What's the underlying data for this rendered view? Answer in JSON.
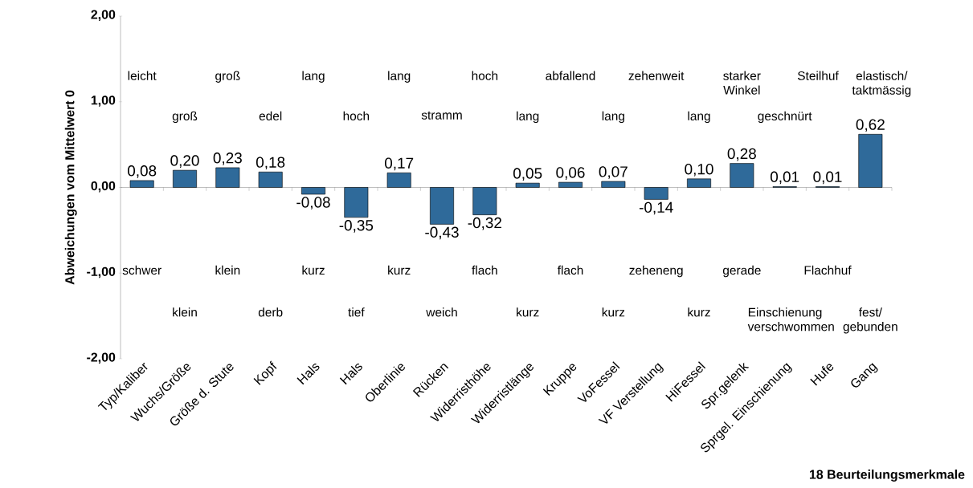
{
  "chart_data": {
    "type": "bar",
    "categories": [
      "Typ/Kaliber",
      "Wuchs/Größe",
      "Größe d. Stute",
      "Kopf",
      "Hals",
      "Hals",
      "Oberlinie",
      "Rücken",
      "Widerristhöhe",
      "Widerristlänge",
      "Kruppe",
      "VoFessel",
      "VF Verstellung",
      "HiFessel",
      "Spr.gelenk",
      "Sprgel. Einschienung",
      "Hufe",
      "Gang"
    ],
    "values": [
      0.08,
      0.2,
      0.23,
      0.18,
      -0.08,
      -0.35,
      0.17,
      -0.43,
      -0.32,
      0.05,
      0.06,
      0.07,
      -0.14,
      0.1,
      0.28,
      0.01,
      0.01,
      0.62
    ],
    "value_labels": [
      "0,08",
      "0,20",
      "0,23",
      "0,18",
      "-0,08",
      "-0,35",
      "0,17",
      "-0,43",
      "-0,32",
      "0,05",
      "0,06",
      "0,07",
      "-0,14",
      "0,10",
      "0,28",
      "0,01",
      "0,01",
      "0,62"
    ],
    "color": "#2f6a9a",
    "ylim": [
      -2,
      2
    ],
    "yticks": [
      {
        "value": -2,
        "label": "-2,00"
      },
      {
        "value": -1,
        "label": "-1,00"
      },
      {
        "value": 0,
        "label": "0,00"
      },
      {
        "value": 1,
        "label": "1,00"
      },
      {
        "value": 2,
        "label": "2,00"
      }
    ],
    "ylabel": "Abweichungen vom Mittelwert 0",
    "xlabel": "18 Beurteilungsmerkmale",
    "annotations": [
      "leicht",
      "schwer",
      "groß",
      "klein",
      "groß",
      "klein",
      "edel",
      "derb",
      "lang",
      "kurz",
      "hoch",
      "tief",
      "lang",
      "kurz",
      "stramm",
      "weich",
      "hoch",
      "flach",
      "lang",
      "kurz",
      "abfallend",
      "flach",
      "lang",
      "kurz",
      "zehenweit",
      "zeheneng",
      "lang",
      "kurz",
      "starker Winkel",
      "gerade",
      "geschnürt",
      "Einschienung verschwommen",
      "Steilhuf",
      "Flachhuf",
      "elastisch/ taktmässig",
      "fest/ gebunden"
    ]
  }
}
